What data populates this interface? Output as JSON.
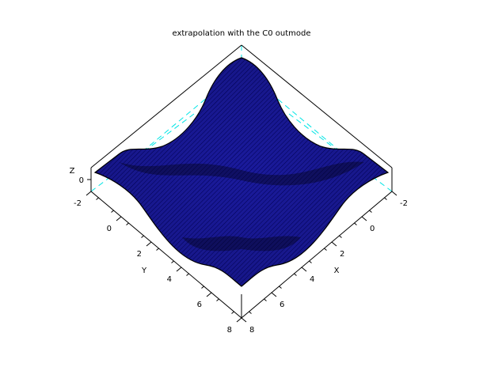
{
  "chart_data": {
    "type": "surface3d",
    "title": "extrapolation with the C0 outmode",
    "xlabel": "X",
    "ylabel": "Y",
    "zlabel": "Z",
    "xlim": [
      -2,
      8
    ],
    "ylim": [
      -2,
      8
    ],
    "x_ticks": [
      "-2",
      "0",
      "2",
      "4",
      "6",
      "8"
    ],
    "y_ticks": [
      "-2",
      "0",
      "2",
      "4",
      "6",
      "8"
    ],
    "z_ticks": [
      "0"
    ],
    "surface_color": "#1a1a9c",
    "edge_color": "#000000",
    "hidden_box_color": "#00e5e5",
    "box_color": "#000000",
    "grid": false
  }
}
